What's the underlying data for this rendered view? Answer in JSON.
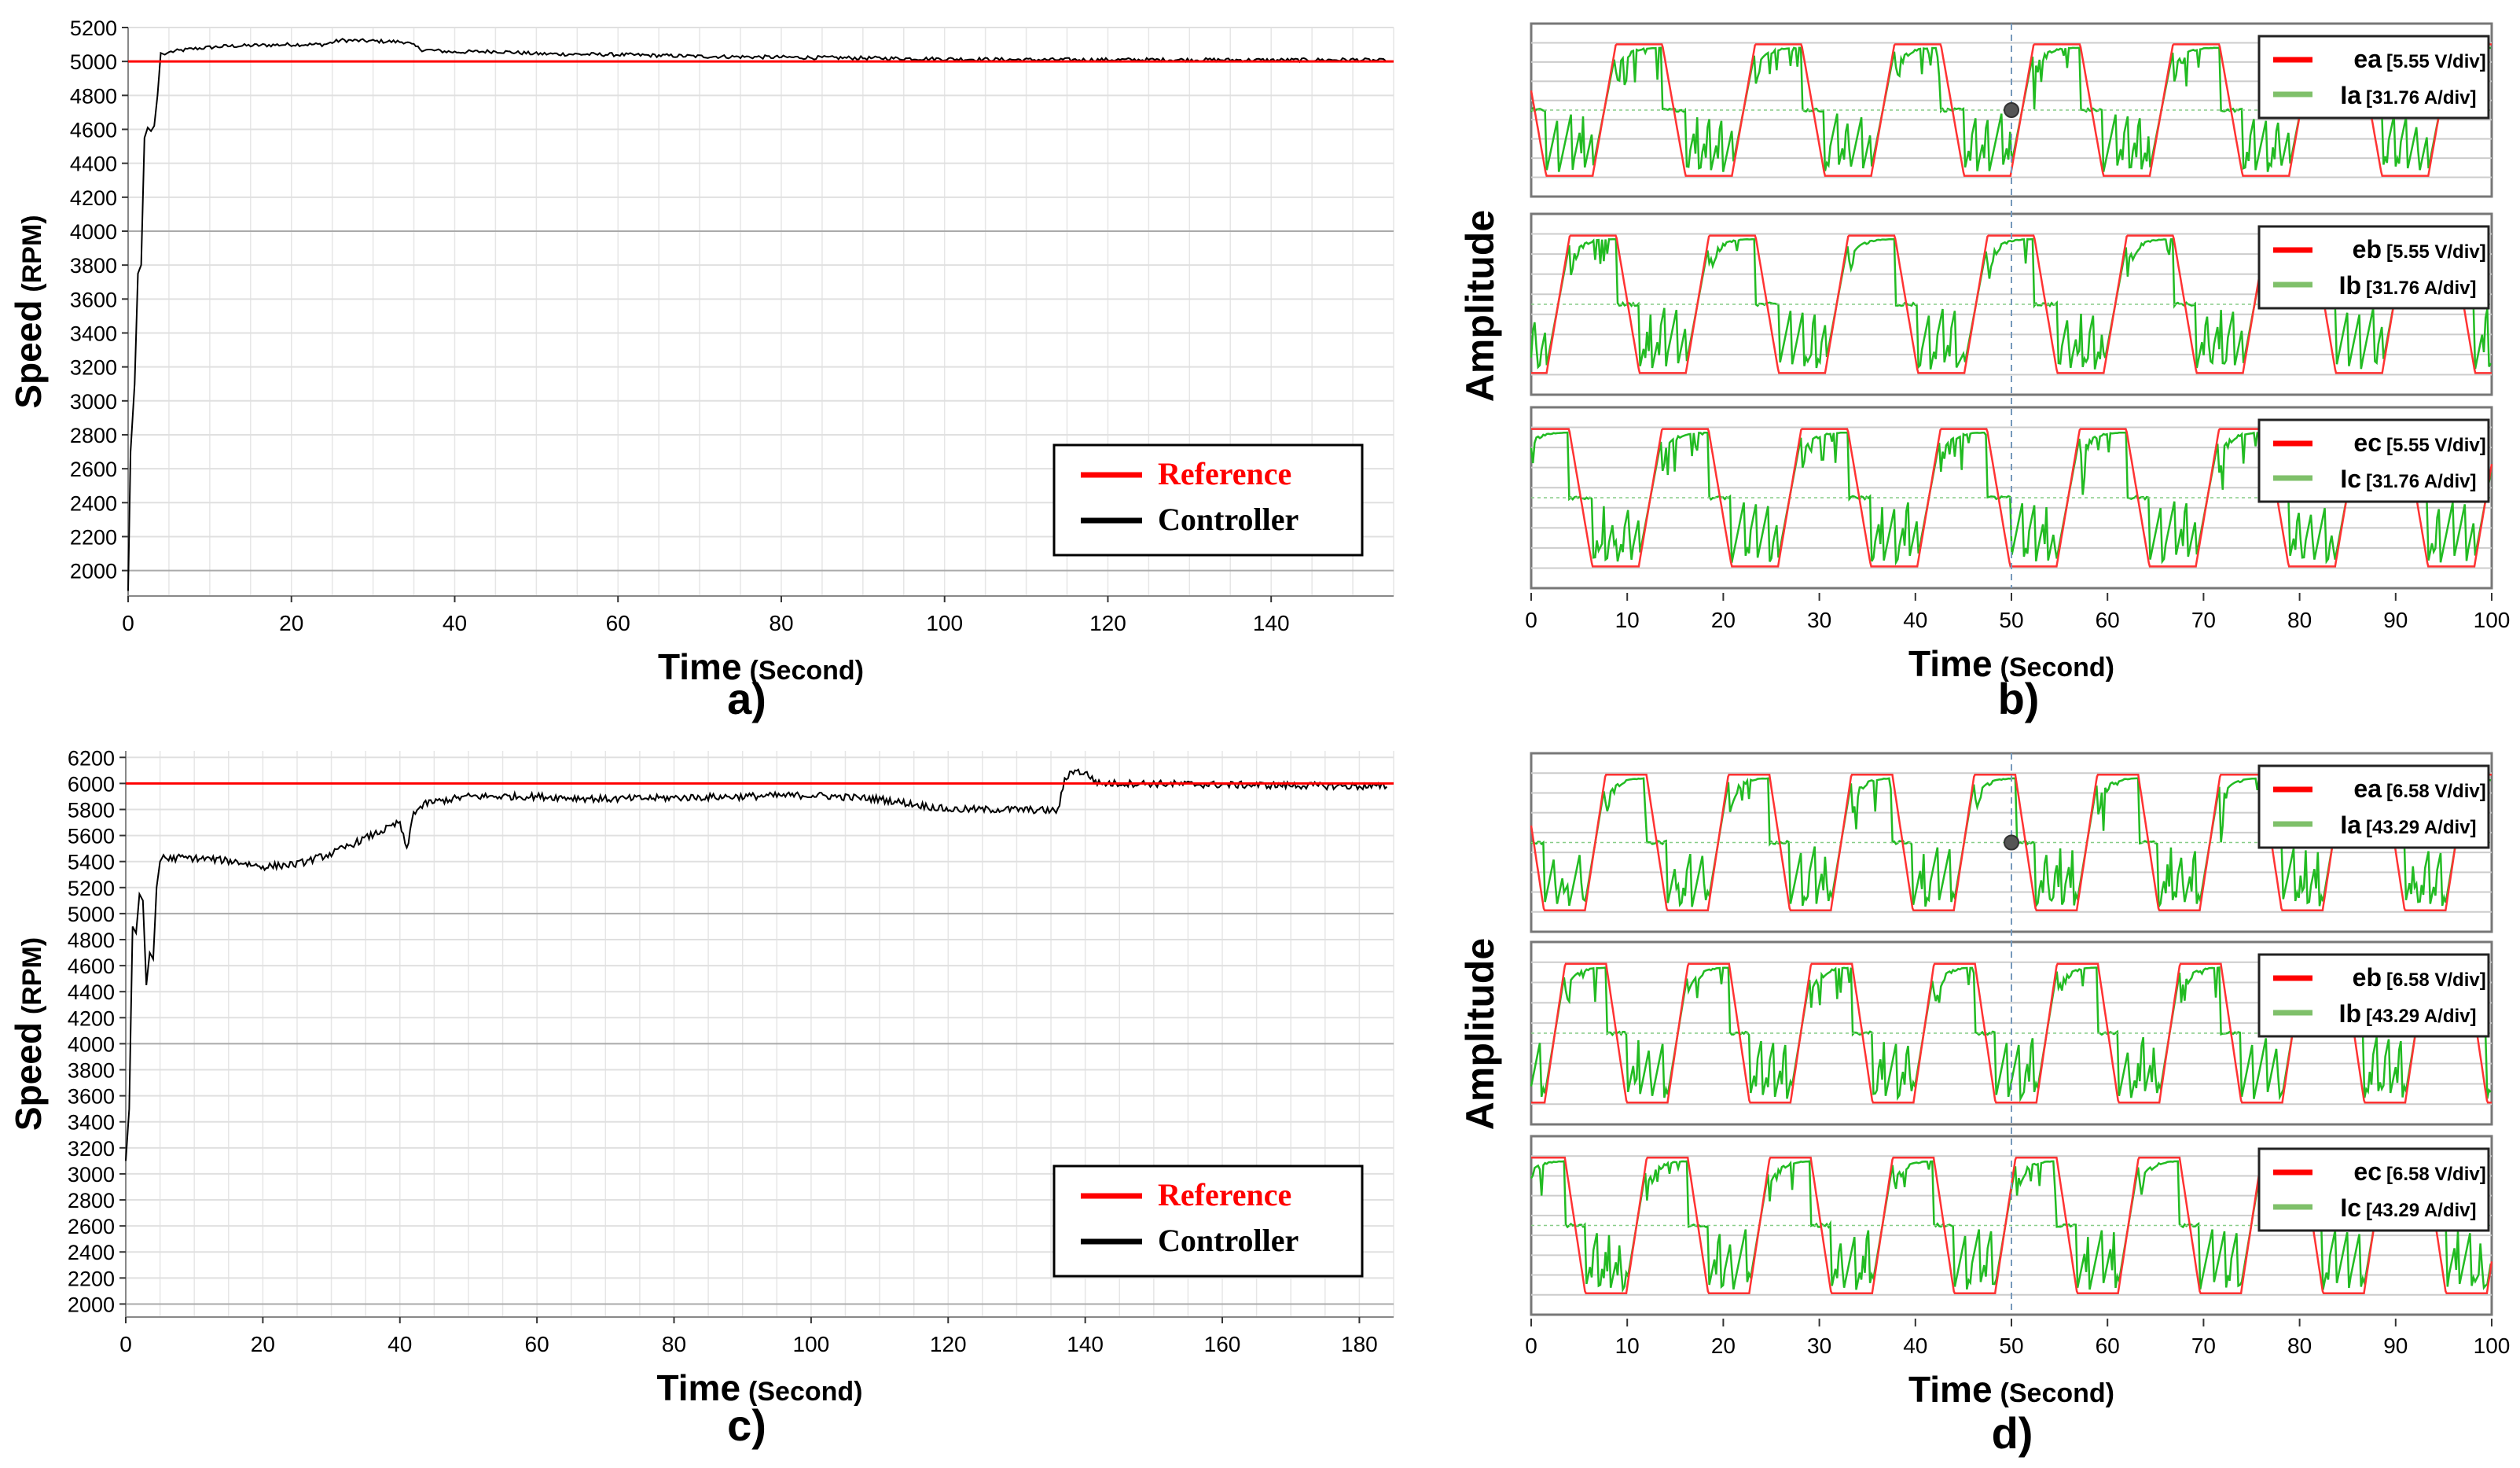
{
  "colors": {
    "reference": "#ff0000",
    "controller": "#000000",
    "current": "#22bb22",
    "emf": "#ff3333",
    "grid": "#cccccc"
  },
  "chart_data": [
    {
      "panel": "a)",
      "type": "line",
      "xlabel_main": "Time",
      "xlabel_sub": "(Second)",
      "ylabel_main": "Speed",
      "ylabel_sub": "(RPM)",
      "xlim": [
        0,
        155
      ],
      "ylim": [
        1850,
        5200
      ],
      "xticks": [
        0,
        20,
        40,
        60,
        80,
        100,
        120,
        140
      ],
      "yticks": [
        2000,
        2200,
        2400,
        2600,
        2800,
        3000,
        3200,
        3400,
        3600,
        3800,
        4000,
        4200,
        4400,
        4600,
        4800,
        5000,
        5200
      ],
      "legend": [
        "Reference",
        "Controller"
      ],
      "reference": 5000,
      "series": [
        {
          "name": "Controller",
          "x": [
            0,
            0.3,
            0.8,
            1.2,
            1.6,
            2,
            2.4,
            2.8,
            3.2,
            3.6,
            4,
            4.5,
            5,
            8,
            12,
            16,
            20,
            24,
            26,
            30,
            34,
            36,
            40,
            45,
            50,
            60,
            70,
            80,
            90,
            100,
            110,
            120,
            130,
            140,
            150,
            154
          ],
          "y": [
            1880,
            2700,
            3100,
            3750,
            3800,
            4550,
            4610,
            4590,
            4620,
            4800,
            5050,
            5040,
            5055,
            5075,
            5090,
            5095,
            5100,
            5100,
            5125,
            5120,
            5115,
            5070,
            5055,
            5060,
            5045,
            5040,
            5030,
            5025,
            5020,
            5015,
            5010,
            5010,
            5010,
            5008,
            5010,
            5005
          ]
        }
      ]
    },
    {
      "panel": "b)",
      "type": "line",
      "xlabel_main": "Time",
      "xlabel_sub": "(Second)",
      "ylabel": "Amplitude",
      "xlim": [
        0,
        100
      ],
      "xticks": [
        0,
        10,
        20,
        30,
        40,
        50,
        60,
        70,
        80,
        90,
        100
      ],
      "period": 14.5,
      "phase_offsets": [
        6.4,
        1.6,
        11.2
      ],
      "subplots": [
        {
          "emf": "ea",
          "emf_scale": "[5.55 V/div]",
          "cur": "Ia",
          "cur_scale": "[31.76 A/div]"
        },
        {
          "emf": "eb",
          "emf_scale": "[5.55 V/div]",
          "cur": "Ib",
          "cur_scale": "[31.76 A/div]"
        },
        {
          "emf": "ec",
          "emf_scale": "[5.55 V/div]",
          "cur": "Ic",
          "cur_scale": "[31.76 A/div]"
        }
      ]
    },
    {
      "panel": "c)",
      "type": "line",
      "xlabel_main": "Time",
      "xlabel_sub": "(Second)",
      "ylabel_main": "Speed",
      "ylabel_sub": "(RPM)",
      "xlim": [
        0,
        185
      ],
      "ylim": [
        1900,
        6250
      ],
      "xticks": [
        0,
        20,
        40,
        60,
        80,
        100,
        120,
        140,
        160,
        180
      ],
      "yticks": [
        2000,
        2200,
        2400,
        2600,
        2800,
        3000,
        3200,
        3400,
        3600,
        3800,
        4000,
        4200,
        4400,
        4600,
        4800,
        5000,
        5200,
        5400,
        5600,
        5800,
        6000,
        6200
      ],
      "legend": [
        "Reference",
        "Controller"
      ],
      "reference": 6000,
      "series": [
        {
          "name": "Controller",
          "x": [
            0,
            0.5,
            1,
            1.5,
            2,
            2.5,
            3,
            3.5,
            4,
            4.5,
            5,
            5.5,
            6,
            8,
            12,
            16,
            20,
            25,
            30,
            35,
            38,
            40,
            41,
            42,
            44,
            50,
            60,
            70,
            80,
            90,
            100,
            110,
            120,
            130,
            136,
            137,
            138,
            140,
            142,
            148,
            160,
            170,
            184
          ],
          "y": [
            3100,
            3500,
            4900,
            4850,
            5150,
            5100,
            4450,
            4700,
            4650,
            5200,
            5400,
            5450,
            5420,
            5430,
            5420,
            5400,
            5360,
            5380,
            5460,
            5580,
            5650,
            5700,
            5480,
            5780,
            5850,
            5900,
            5900,
            5880,
            5890,
            5900,
            5910,
            5880,
            5800,
            5800,
            5790,
            6020,
            6100,
            6080,
            6000,
            6000,
            5990,
            5985,
            5975
          ]
        }
      ]
    },
    {
      "panel": "d)",
      "type": "line",
      "xlabel_main": "Time",
      "xlabel_sub": "(Second)",
      "ylabel": "Amplitude",
      "xlim": [
        0,
        100
      ],
      "xticks": [
        0,
        10,
        20,
        30,
        40,
        50,
        60,
        70,
        80,
        90,
        100
      ],
      "period": 12.8,
      "phase_offsets": [
        5.6,
        1.4,
        9.9
      ],
      "subplots": [
        {
          "emf": "ea",
          "emf_scale": "[6.58 V/div]",
          "cur": "Ia",
          "cur_scale": "[43.29 A/div]"
        },
        {
          "emf": "eb",
          "emf_scale": "[6.58 V/div]",
          "cur": "Ib",
          "cur_scale": "[43.29 A/div]"
        },
        {
          "emf": "ec",
          "emf_scale": "[6.58 V/div]",
          "cur": "Ic",
          "cur_scale": "[43.29 A/div]"
        }
      ]
    }
  ]
}
